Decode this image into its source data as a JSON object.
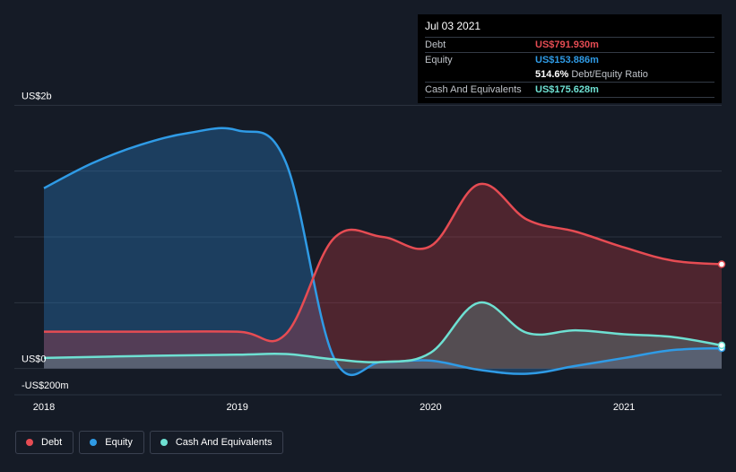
{
  "tooltip": {
    "date": "Jul 03 2021",
    "rows": [
      {
        "label": "Debt",
        "value": "US$791.930m",
        "color": "#e64c53"
      },
      {
        "label": "Equity",
        "value": "US$153.886m",
        "color": "#2f9be6"
      },
      {
        "ratio_value": "514.6%",
        "ratio_label": "Debt/Equity Ratio"
      },
      {
        "label": "Cash And Equivalents",
        "value": "US$175.628m",
        "color": "#6ee0d2"
      }
    ]
  },
  "legend": [
    {
      "label": "Debt",
      "color": "#e64c53"
    },
    {
      "label": "Equity",
      "color": "#2f9be6"
    },
    {
      "label": "Cash And Equivalents",
      "color": "#6ee0d2"
    }
  ],
  "chart_data": {
    "type": "area",
    "y_axis_labels": [
      {
        "value": 2000,
        "label": "US$2b"
      },
      {
        "value": 0,
        "label": "US$0"
      },
      {
        "value": -200,
        "label": "-US$200m"
      }
    ],
    "x_tick_labels": [
      {
        "value": 2018.0,
        "label": "2018"
      },
      {
        "value": 2019.0,
        "label": "2019"
      },
      {
        "value": 2020.0,
        "label": "2020"
      },
      {
        "value": 2021.0,
        "label": "2021"
      }
    ],
    "xlim": [
      2017.93,
      2021.55
    ],
    "ylim": [
      -200,
      2050
    ],
    "gridlines_y": [
      2000,
      1500,
      1000,
      500,
      0
    ],
    "series": [
      {
        "name": "Debt",
        "color": "#e64c53",
        "points": [
          [
            2018.0,
            280
          ],
          [
            2018.5,
            280
          ],
          [
            2019.0,
            280
          ],
          [
            2019.25,
            260
          ],
          [
            2019.5,
            990
          ],
          [
            2019.75,
            1000
          ],
          [
            2020.0,
            930
          ],
          [
            2020.25,
            1400
          ],
          [
            2020.5,
            1130
          ],
          [
            2020.75,
            1040
          ],
          [
            2021.0,
            920
          ],
          [
            2021.25,
            820
          ],
          [
            2021.505,
            792
          ]
        ]
      },
      {
        "name": "Equity",
        "color": "#2f9be6",
        "points": [
          [
            2018.0,
            1370
          ],
          [
            2018.25,
            1560
          ],
          [
            2018.5,
            1700
          ],
          [
            2018.75,
            1790
          ],
          [
            2019.0,
            1810
          ],
          [
            2019.25,
            1570
          ],
          [
            2019.5,
            80
          ],
          [
            2019.75,
            50
          ],
          [
            2020.0,
            60
          ],
          [
            2020.25,
            -10
          ],
          [
            2020.5,
            -40
          ],
          [
            2020.75,
            20
          ],
          [
            2021.0,
            80
          ],
          [
            2021.25,
            140
          ],
          [
            2021.505,
            154
          ]
        ]
      },
      {
        "name": "Cash And Equivalents",
        "color": "#6ee0d2",
        "points": [
          [
            2018.0,
            80
          ],
          [
            2018.5,
            95
          ],
          [
            2019.0,
            105
          ],
          [
            2019.25,
            110
          ],
          [
            2019.5,
            70
          ],
          [
            2019.75,
            50
          ],
          [
            2020.0,
            120
          ],
          [
            2020.25,
            500
          ],
          [
            2020.5,
            270
          ],
          [
            2020.75,
            290
          ],
          [
            2021.0,
            260
          ],
          [
            2021.25,
            240
          ],
          [
            2021.505,
            176
          ]
        ]
      }
    ]
  }
}
